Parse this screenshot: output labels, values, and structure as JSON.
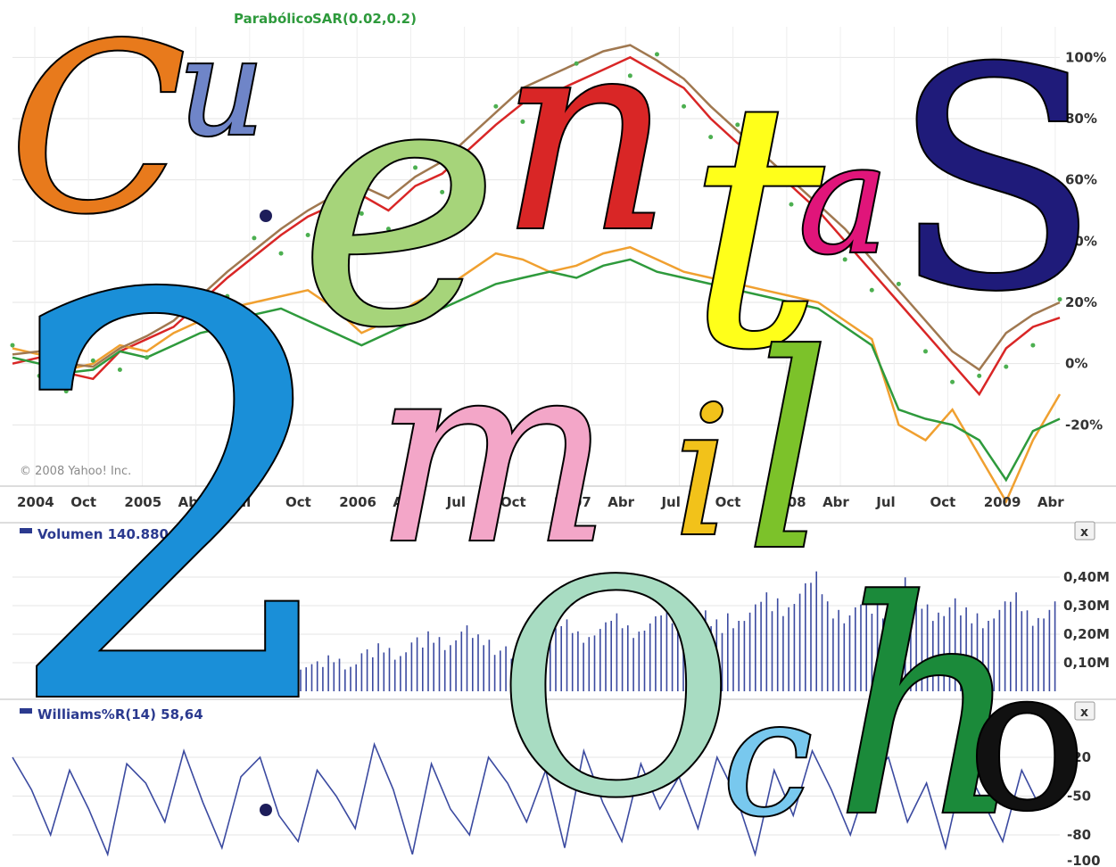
{
  "chart_data": [
    {
      "type": "line",
      "legend_items": [
        "Parabólico",
        "SAR(0.02,0.2)"
      ],
      "x_ticks": [
        "2004",
        "Oct",
        "2005",
        "Abr",
        "Jul",
        "Oct",
        "2006",
        "Abr",
        "Jul",
        "Oct",
        "2007",
        "Abr",
        "Jul",
        "Oct",
        "2008",
        "Abr",
        "Jul",
        "Oct",
        "2009",
        "Abr"
      ],
      "y_ticks": [
        "100%",
        "80%",
        "60%",
        "40%",
        "20%",
        "0%",
        "-20%"
      ],
      "ylim": [
        -40,
        110
      ],
      "copyright": "© 2008 Yahoo! Inc.",
      "series": [
        {
          "color": "#d92626",
          "values": [
            0,
            2,
            -3,
            -5,
            4,
            8,
            12,
            20,
            28,
            35,
            42,
            48,
            52,
            55,
            50,
            58,
            62,
            70,
            78,
            85,
            88,
            92,
            96,
            100,
            95,
            90,
            80,
            72,
            65,
            58,
            50,
            40,
            30,
            20,
            10,
            0,
            -10,
            5,
            12,
            15
          ]
        },
        {
          "color": "#f0a030",
          "values": [
            5,
            3,
            -2,
            0,
            6,
            4,
            10,
            14,
            18,
            20,
            22,
            24,
            18,
            10,
            14,
            20,
            24,
            30,
            36,
            34,
            30,
            32,
            36,
            38,
            34,
            30,
            28,
            26,
            24,
            22,
            20,
            14,
            8,
            -20,
            -25,
            -15,
            -30,
            -45,
            -25,
            -10
          ]
        },
        {
          "color": "#2e9a3c",
          "values": [
            2,
            0,
            -3,
            -2,
            4,
            2,
            6,
            10,
            12,
            16,
            18,
            14,
            10,
            6,
            10,
            14,
            18,
            22,
            26,
            28,
            30,
            28,
            32,
            34,
            30,
            28,
            26,
            24,
            22,
            20,
            18,
            12,
            6,
            -15,
            -18,
            -20,
            -25,
            -38,
            -22,
            -18
          ]
        },
        {
          "color": "#a07850",
          "values": [
            3,
            4,
            0,
            -1,
            5,
            9,
            14,
            22,
            30,
            37,
            44,
            50,
            55,
            58,
            54,
            61,
            66,
            74,
            82,
            90,
            94,
            98,
            102,
            104,
            99,
            93,
            84,
            76,
            68,
            60,
            52,
            44,
            34,
            24,
            14,
            4,
            -2,
            10,
            16,
            20
          ]
        }
      ]
    },
    {
      "type": "bar",
      "title": "Volumen 140.880",
      "y_ticks": [
        "0,40M",
        "0,30M",
        "0,20M",
        "0,10M"
      ],
      "ylim": [
        0,
        0.5
      ],
      "values": [
        0.08,
        0.1,
        0.12,
        0.09,
        0.14,
        0.16,
        0.13,
        0.18,
        0.2,
        0.17,
        0.22,
        0.19,
        0.15,
        0.12,
        0.18,
        0.21,
        0.24,
        0.2,
        0.23,
        0.26,
        0.22,
        0.25,
        0.28,
        0.3,
        0.27,
        0.24,
        0.26,
        0.29,
        0.33,
        0.31,
        0.36,
        0.4,
        0.3,
        0.28,
        0.32,
        0.3,
        0.38,
        0.34,
        0.29,
        0.31,
        0.28,
        0.26,
        0.3,
        0.33,
        0.27,
        0.3
      ]
    },
    {
      "type": "line",
      "title": "Williams%R(14) 58,64",
      "y_ticks": [
        "-20",
        "-50",
        "-80",
        "-100"
      ],
      "ylim": [
        -100,
        0
      ],
      "values": [
        -20,
        -45,
        -80,
        -30,
        -60,
        -95,
        -25,
        -40,
        -70,
        -15,
        -55,
        -90,
        -35,
        -20,
        -65,
        -85,
        -30,
        -50,
        -75,
        -10,
        -45,
        -95,
        -25,
        -60,
        -80,
        -20,
        -40,
        -70,
        -30,
        -90,
        -15,
        -55,
        -85,
        -25,
        -60,
        -35,
        -75,
        -20,
        -50,
        -95,
        -30,
        -65,
        -15,
        -45,
        -80,
        -35,
        -20,
        -70,
        -40,
        -90,
        -25,
        -55,
        -85,
        -30,
        -60,
        -20
      ]
    }
  ],
  "close_buttons": [
    "x",
    "x"
  ],
  "overlay_text": [
    "C",
    "u",
    "e",
    "n",
    "t",
    "a",
    "S",
    "2",
    "m",
    "i",
    "l",
    "O",
    "c",
    "h",
    "o"
  ]
}
